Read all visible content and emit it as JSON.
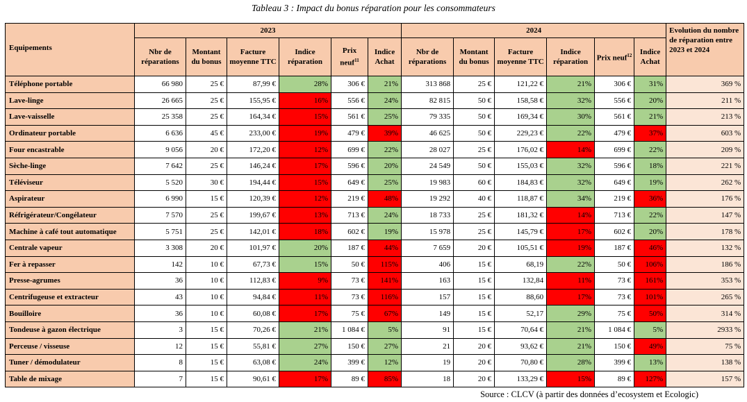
{
  "caption": "Tableau 3 : Impact du bonus réparation pour les consommateurs",
  "headers": {
    "equipements": "Equipements",
    "year_2023": "2023",
    "year_2024": "2024",
    "evolution": "Evolution du nombre de réparation entre 2023 et 2024",
    "nbr": "Nbr de réparations",
    "montant": "Montant du bonus",
    "facture": "Facture moyenne TTC",
    "indice_rep": "Indice réparation",
    "prix_2023": "Prix neuf",
    "prix_2023_note": "11",
    "prix_2024": "Prix neuf",
    "prix_2024_note": "12",
    "indice_achat": "Indice Achat"
  },
  "colors": {
    "header": "#f8cbad",
    "green": "#a9d18e",
    "red": "#ff0000",
    "evolution": "#fbe5d6"
  },
  "rows": [
    {
      "name": "Téléphone portable",
      "y23": {
        "nbr": "66 980",
        "montant": "25 €",
        "facture": "87,99 €",
        "irep": "28%",
        "irep_c": "green",
        "prix": "306 €",
        "iachat": "21%",
        "iachat_c": "green"
      },
      "y24": {
        "nbr": "313 868",
        "montant": "25 €",
        "facture": "121,22 €",
        "irep": "21%",
        "irep_c": "green",
        "prix": "306 €",
        "iachat": "31%",
        "iachat_c": "green"
      },
      "evol": "369 %"
    },
    {
      "name": "Lave-linge",
      "y23": {
        "nbr": "26 665",
        "montant": "25 €",
        "facture": "155,95 €",
        "irep": "16%",
        "irep_c": "red",
        "prix": "556 €",
        "iachat": "24%",
        "iachat_c": "green"
      },
      "y24": {
        "nbr": "82 815",
        "montant": "50 €",
        "facture": "158,58 €",
        "irep": "32%",
        "irep_c": "green",
        "prix": "556 €",
        "iachat": "20%",
        "iachat_c": "green"
      },
      "evol": "211 %"
    },
    {
      "name": "Lave-vaisselle",
      "y23": {
        "nbr": "25 358",
        "montant": "25 €",
        "facture": "164,34 €",
        "irep": "15%",
        "irep_c": "red",
        "prix": "561 €",
        "iachat": "25%",
        "iachat_c": "green"
      },
      "y24": {
        "nbr": "79 335",
        "montant": "50 €",
        "facture": "169,34 €",
        "irep": "30%",
        "irep_c": "green",
        "prix": "561 €",
        "iachat": "21%",
        "iachat_c": "green"
      },
      "evol": "213 %"
    },
    {
      "name": "Ordinateur portable",
      "y23": {
        "nbr": "6 636",
        "montant": "45 €",
        "facture": "233,00 €",
        "irep": "19%",
        "irep_c": "red",
        "prix": "479 €",
        "iachat": "39%",
        "iachat_c": "red"
      },
      "y24": {
        "nbr": "46 625",
        "montant": "50 €",
        "facture": "229,23 €",
        "irep": "22%",
        "irep_c": "green",
        "prix": "479 €",
        "iachat": "37%",
        "iachat_c": "red"
      },
      "evol": "603 %"
    },
    {
      "name": "Four encastrable",
      "y23": {
        "nbr": "9 056",
        "montant": "20 €",
        "facture": "172,20 €",
        "irep": "12%",
        "irep_c": "red",
        "prix": "699 €",
        "iachat": "22%",
        "iachat_c": "green"
      },
      "y24": {
        "nbr": "28 027",
        "montant": "25 €",
        "facture": "176,02 €",
        "irep": "14%",
        "irep_c": "red",
        "prix": "699 €",
        "iachat": "22%",
        "iachat_c": "green"
      },
      "evol": "209 %"
    },
    {
      "name": "Sèche-linge",
      "y23": {
        "nbr": "7 642",
        "montant": "25 €",
        "facture": "146,24 €",
        "irep": "17%",
        "irep_c": "red",
        "prix": "596 €",
        "iachat": "20%",
        "iachat_c": "green"
      },
      "y24": {
        "nbr": "24 549",
        "montant": "50 €",
        "facture": "155,03 €",
        "irep": "32%",
        "irep_c": "green",
        "prix": "596 €",
        "iachat": "18%",
        "iachat_c": "green"
      },
      "evol": "221 %"
    },
    {
      "name": "Téléviseur",
      "y23": {
        "nbr": "5 520",
        "montant": "30 €",
        "facture": "194,44 €",
        "irep": "15%",
        "irep_c": "red",
        "prix": "649 €",
        "iachat": "25%",
        "iachat_c": "green"
      },
      "y24": {
        "nbr": "19 983",
        "montant": "60 €",
        "facture": "184,83 €",
        "irep": "32%",
        "irep_c": "green",
        "prix": "649 €",
        "iachat": "19%",
        "iachat_c": "green"
      },
      "evol": "262 %"
    },
    {
      "name": "Aspirateur",
      "y23": {
        "nbr": "6 990",
        "montant": "15 €",
        "facture": "120,39 €",
        "irep": "12%",
        "irep_c": "red",
        "prix": "219 €",
        "iachat": "48%",
        "iachat_c": "red"
      },
      "y24": {
        "nbr": "19 292",
        "montant": "40 €",
        "facture": "118,87 €",
        "irep": "34%",
        "irep_c": "green",
        "prix": "219 €",
        "iachat": "36%",
        "iachat_c": "red"
      },
      "evol": "176 %"
    },
    {
      "name": "Réfrigérateur/Congélateur",
      "y23": {
        "nbr": "7 570",
        "montant": "25 €",
        "facture": "199,67 €",
        "irep": "13%",
        "irep_c": "red",
        "prix": "713 €",
        "iachat": "24%",
        "iachat_c": "green"
      },
      "y24": {
        "nbr": "18 733",
        "montant": "25 €",
        "facture": "181,32 €",
        "irep": "14%",
        "irep_c": "red",
        "prix": "713 €",
        "iachat": "22%",
        "iachat_c": "green"
      },
      "evol": "147 %"
    },
    {
      "name": "Machine à café tout automatique",
      "y23": {
        "nbr": "5 751",
        "montant": "25 €",
        "facture": "142,01 €",
        "irep": "18%",
        "irep_c": "red",
        "prix": "602 €",
        "iachat": "19%",
        "iachat_c": "green"
      },
      "y24": {
        "nbr": "15 978",
        "montant": "25 €",
        "facture": "145,79 €",
        "irep": "17%",
        "irep_c": "red",
        "prix": "602 €",
        "iachat": "20%",
        "iachat_c": "green"
      },
      "evol": "178 %"
    },
    {
      "name": "Centrale vapeur",
      "y23": {
        "nbr": "3 308",
        "montant": "20 €",
        "facture": "101,97 €",
        "irep": "20%",
        "irep_c": "green",
        "prix": "187 €",
        "iachat": "44%",
        "iachat_c": "red"
      },
      "y24": {
        "nbr": "7 659",
        "montant": "20 €",
        "facture": "105,51 €",
        "irep": "19%",
        "irep_c": "red",
        "prix": "187 €",
        "iachat": "46%",
        "iachat_c": "red"
      },
      "evol": "132 %"
    },
    {
      "name": "Fer à repasser",
      "y23": {
        "nbr": "142",
        "montant": "10 €",
        "facture": "67,73 €",
        "irep": "15%",
        "irep_c": "green",
        "prix": "50 €",
        "iachat": "115%",
        "iachat_c": "red"
      },
      "y24": {
        "nbr": "406",
        "montant": "15 €",
        "facture": "68,19",
        "irep": "22%",
        "irep_c": "green",
        "prix": "50 €",
        "iachat": "106%",
        "iachat_c": "red"
      },
      "evol": "186 %"
    },
    {
      "name": "Presse-agrumes",
      "y23": {
        "nbr": "36",
        "montant": "10 €",
        "facture": "112,83 €",
        "irep": "9%",
        "irep_c": "red",
        "prix": "73 €",
        "iachat": "141%",
        "iachat_c": "red"
      },
      "y24": {
        "nbr": "163",
        "montant": "15 €",
        "facture": "132,84",
        "irep": "11%",
        "irep_c": "red",
        "prix": "73 €",
        "iachat": "161%",
        "iachat_c": "red"
      },
      "evol": "353 %"
    },
    {
      "name": "Centrifugeuse et extracteur",
      "y23": {
        "nbr": "43",
        "montant": "10 €",
        "facture": "94,84 €",
        "irep": "11%",
        "irep_c": "red",
        "prix": "73 €",
        "iachat": "116%",
        "iachat_c": "red"
      },
      "y24": {
        "nbr": "157",
        "montant": "15 €",
        "facture": "88,60",
        "irep": "17%",
        "irep_c": "red",
        "prix": "73 €",
        "iachat": "101%",
        "iachat_c": "red"
      },
      "evol": "265 %"
    },
    {
      "name": "Bouilloire",
      "y23": {
        "nbr": "36",
        "montant": "10 €",
        "facture": "60,08 €",
        "irep": "17%",
        "irep_c": "red",
        "prix": "75 €",
        "iachat": "67%",
        "iachat_c": "red"
      },
      "y24": {
        "nbr": "149",
        "montant": "15 €",
        "facture": "52,17",
        "irep": "29%",
        "irep_c": "green",
        "prix": "75 €",
        "iachat": "50%",
        "iachat_c": "red"
      },
      "evol": "314 %"
    },
    {
      "name": "Tondeuse à gazon électrique",
      "y23": {
        "nbr": "3",
        "montant": "15 €",
        "facture": "70,26 €",
        "irep": "21%",
        "irep_c": "green",
        "prix": "1 084 €",
        "iachat": "5%",
        "iachat_c": "green"
      },
      "y24": {
        "nbr": "91",
        "montant": "15 €",
        "facture": "70,64 €",
        "irep": "21%",
        "irep_c": "green",
        "prix": "1 084 €",
        "iachat": "5%",
        "iachat_c": "green"
      },
      "evol": "2933 %"
    },
    {
      "name": "Perceuse / visseuse",
      "y23": {
        "nbr": "12",
        "montant": "15 €",
        "facture": "55,81 €",
        "irep": "27%",
        "irep_c": "green",
        "prix": "150 €",
        "iachat": "27%",
        "iachat_c": "green"
      },
      "y24": {
        "nbr": "21",
        "montant": "20 €",
        "facture": "93,62 €",
        "irep": "21%",
        "irep_c": "green",
        "prix": "150 €",
        "iachat": "49%",
        "iachat_c": "red"
      },
      "evol": "75 %"
    },
    {
      "name": "Tuner / démodulateur",
      "y23": {
        "nbr": "8",
        "montant": "15 €",
        "facture": "63,08 €",
        "irep": "24%",
        "irep_c": "green",
        "prix": "399 €",
        "iachat": "12%",
        "iachat_c": "green"
      },
      "y24": {
        "nbr": "19",
        "montant": "20 €",
        "facture": "70,80 €",
        "irep": "28%",
        "irep_c": "green",
        "prix": "399 €",
        "iachat": "13%",
        "iachat_c": "green"
      },
      "evol": "138 %"
    },
    {
      "name": "Table de mixage",
      "y23": {
        "nbr": "7",
        "montant": "15 €",
        "facture": "90,61 €",
        "irep": "17%",
        "irep_c": "red",
        "prix": "89 €",
        "iachat": "85%",
        "iachat_c": "red"
      },
      "y24": {
        "nbr": "18",
        "montant": "20 €",
        "facture": "133,29 €",
        "irep": "15%",
        "irep_c": "red",
        "prix": "89 €",
        "iachat": "127%",
        "iachat_c": "red"
      },
      "evol": "157 %"
    }
  ],
  "source": "Source : CLCV (à partir des données d’ecosystem et Ecologic)"
}
